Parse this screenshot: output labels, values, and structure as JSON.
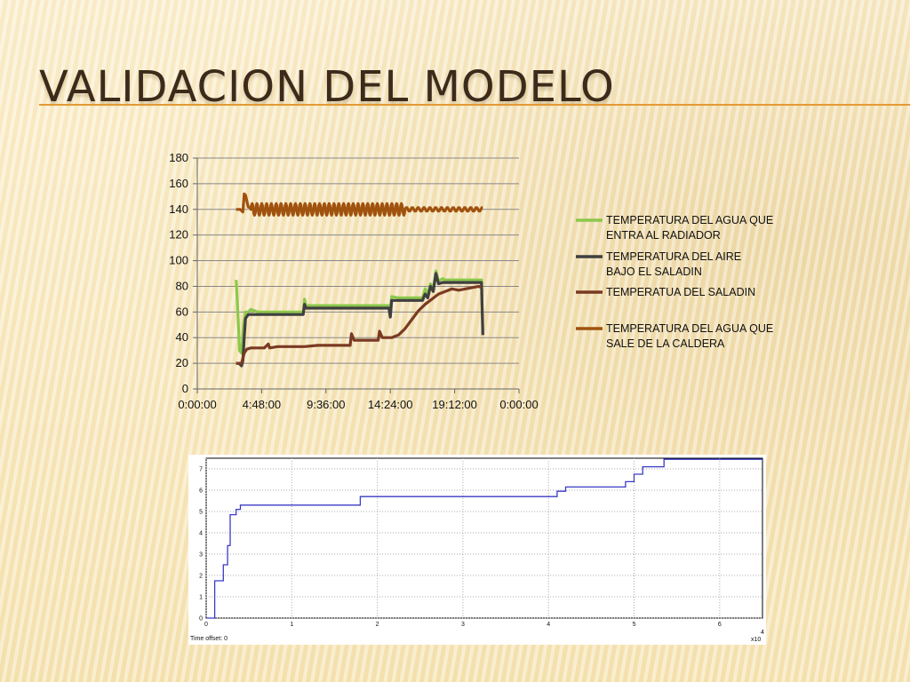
{
  "slide": {
    "title": "VALIDACION DEL MODELO",
    "accent_color": "#e39a33"
  },
  "chart_data": [
    {
      "type": "line",
      "title": "",
      "xlabel": "",
      "ylabel": "",
      "x_tick_labels": [
        "0:00:00",
        "4:48:00",
        "9:36:00",
        "14:24:00",
        "19:12:00",
        "0:00:00"
      ],
      "x_unit": "hours",
      "xlim": [
        0,
        24
      ],
      "ylim": [
        0,
        180
      ],
      "y_ticks": [
        0,
        20,
        40,
        60,
        80,
        100,
        120,
        140,
        160,
        180
      ],
      "grid": "horizontal",
      "legend_position": "right",
      "series": [
        {
          "name": "TEMPERATURA DEL AGUA QUE ENTRA AL RADIADOR",
          "color": "#8cc84b",
          "points": [
            [
              2.9,
              85
            ],
            [
              3.0,
              65
            ],
            [
              3.15,
              30
            ],
            [
              3.3,
              28
            ],
            [
              3.45,
              50
            ],
            [
              3.6,
              60
            ],
            [
              3.8,
              60
            ],
            [
              4.0,
              62
            ],
            [
              4.5,
              60
            ],
            [
              5.0,
              60
            ],
            [
              6.0,
              60
            ],
            [
              7.0,
              60
            ],
            [
              7.9,
              60
            ],
            [
              8.0,
              70
            ],
            [
              8.1,
              65
            ],
            [
              9.0,
              65
            ],
            [
              10.0,
              65
            ],
            [
              11.0,
              65
            ],
            [
              12.0,
              65
            ],
            [
              13.0,
              65
            ],
            [
              14.3,
              65
            ],
            [
              14.4,
              58
            ],
            [
              14.5,
              72
            ],
            [
              15.0,
              71
            ],
            [
              16.0,
              71
            ],
            [
              16.8,
              71
            ],
            [
              17.0,
              78
            ],
            [
              17.2,
              74
            ],
            [
              17.4,
              82
            ],
            [
              17.6,
              78
            ],
            [
              17.8,
              92
            ],
            [
              18.0,
              84
            ],
            [
              18.3,
              86
            ],
            [
              18.5,
              85
            ],
            [
              19.0,
              85
            ],
            [
              20.0,
              85
            ],
            [
              21.0,
              85
            ],
            [
              21.2,
              85
            ],
            [
              21.3,
              45
            ]
          ]
        },
        {
          "name": "TEMPERATURA DEL AIRE BAJO EL SALADIN",
          "color": "#3f3f3f",
          "points": [
            [
              2.9,
              20
            ],
            [
              3.1,
              20
            ],
            [
              3.3,
              18
            ],
            [
              3.4,
              22
            ],
            [
              3.5,
              40
            ],
            [
              3.6,
              55
            ],
            [
              3.8,
              58
            ],
            [
              4.0,
              58
            ],
            [
              5.0,
              58
            ],
            [
              6.0,
              58
            ],
            [
              7.9,
              58
            ],
            [
              8.0,
              66
            ],
            [
              8.1,
              63
            ],
            [
              9.0,
              63
            ],
            [
              10.0,
              63
            ],
            [
              11.0,
              63
            ],
            [
              12.0,
              63
            ],
            [
              13.0,
              63
            ],
            [
              14.3,
              63
            ],
            [
              14.4,
              56
            ],
            [
              14.5,
              69
            ],
            [
              15.0,
              69
            ],
            [
              16.0,
              69
            ],
            [
              16.8,
              69
            ],
            [
              17.0,
              74
            ],
            [
              17.2,
              71
            ],
            [
              17.4,
              80
            ],
            [
              17.6,
              76
            ],
            [
              17.8,
              90
            ],
            [
              18.0,
              82
            ],
            [
              18.3,
              83
            ],
            [
              19.0,
              83
            ],
            [
              20.0,
              83
            ],
            [
              21.0,
              83
            ],
            [
              21.2,
              83
            ],
            [
              21.3,
              42
            ]
          ]
        },
        {
          "name": "TEMPERATUA DEL SALADIN",
          "color": "#7a3a22",
          "points": [
            [
              2.9,
              20
            ],
            [
              3.3,
              20
            ],
            [
              3.5,
              28
            ],
            [
              3.7,
              31
            ],
            [
              4.0,
              32
            ],
            [
              4.5,
              32
            ],
            [
              5.0,
              32
            ],
            [
              5.3,
              35
            ],
            [
              5.4,
              32
            ],
            [
              6.0,
              33
            ],
            [
              7.0,
              33
            ],
            [
              8.0,
              33
            ],
            [
              9.0,
              34
            ],
            [
              10.0,
              34
            ],
            [
              11.0,
              34
            ],
            [
              11.4,
              34
            ],
            [
              11.5,
              43
            ],
            [
              11.7,
              38
            ],
            [
              12.0,
              38
            ],
            [
              13.0,
              38
            ],
            [
              13.5,
              38
            ],
            [
              13.6,
              45
            ],
            [
              13.8,
              40
            ],
            [
              14.5,
              40
            ],
            [
              15.0,
              42
            ],
            [
              15.5,
              47
            ],
            [
              16.0,
              54
            ],
            [
              16.5,
              61
            ],
            [
              17.0,
              66
            ],
            [
              17.5,
              70
            ],
            [
              18.0,
              74
            ],
            [
              18.5,
              76
            ],
            [
              19.0,
              78
            ],
            [
              19.5,
              77
            ],
            [
              20.0,
              78
            ],
            [
              20.5,
              79
            ],
            [
              21.0,
              80
            ],
            [
              21.2,
              79
            ]
          ]
        },
        {
          "name": "TEMPERATURA DEL AGUA QUE SALE DE LA CALDERA",
          "color": "#a0520f",
          "points": [
            [
              2.9,
              140
            ],
            [
              3.2,
              140
            ],
            [
              3.4,
              138
            ],
            [
              3.5,
              152
            ],
            [
              3.6,
              151
            ],
            [
              3.8,
              142
            ],
            [
              4.0,
              141
            ],
            [
              21.3,
              139
            ]
          ],
          "oscillation": {
            "from_x": 4.0,
            "to_x": 15.5,
            "center": 140,
            "amplitude": 4.5,
            "cycles": 32,
            "after": "≈140 ±2 until x=21.3"
          }
        }
      ]
    },
    {
      "type": "line",
      "title": "",
      "xlabel": "",
      "ylabel": "",
      "x_ticks": [
        0,
        1,
        2,
        3,
        4,
        5,
        6
      ],
      "x_multiplier_label": "x10",
      "x_multiplier_exponent": "4",
      "xlim": [
        0,
        6.5
      ],
      "ylim": [
        0,
        7.5
      ],
      "y_ticks": [
        0,
        1,
        2,
        3,
        4,
        5,
        6,
        7
      ],
      "grid": "dotted",
      "footer_text": "Time offset:  0",
      "color": "#3b3bc8",
      "series": [
        {
          "name": "",
          "step_points": [
            [
              0,
              0
            ],
            [
              0.1,
              0
            ],
            [
              0.1,
              1.75
            ],
            [
              0.2,
              1.75
            ],
            [
              0.2,
              2.5
            ],
            [
              0.25,
              2.5
            ],
            [
              0.25,
              3.4
            ],
            [
              0.28,
              3.4
            ],
            [
              0.28,
              4.85
            ],
            [
              0.35,
              4.85
            ],
            [
              0.35,
              5.1
            ],
            [
              0.4,
              5.1
            ],
            [
              0.4,
              5.3
            ],
            [
              1.8,
              5.3
            ],
            [
              1.8,
              5.7
            ],
            [
              4.1,
              5.7
            ],
            [
              4.1,
              5.95
            ],
            [
              4.2,
              5.95
            ],
            [
              4.2,
              6.15
            ],
            [
              4.9,
              6.15
            ],
            [
              4.9,
              6.4
            ],
            [
              5.0,
              6.4
            ],
            [
              5.0,
              6.75
            ],
            [
              5.1,
              6.75
            ],
            [
              5.1,
              7.1
            ],
            [
              5.35,
              7.1
            ],
            [
              5.35,
              7.45
            ],
            [
              6.5,
              7.45
            ]
          ]
        }
      ]
    }
  ]
}
